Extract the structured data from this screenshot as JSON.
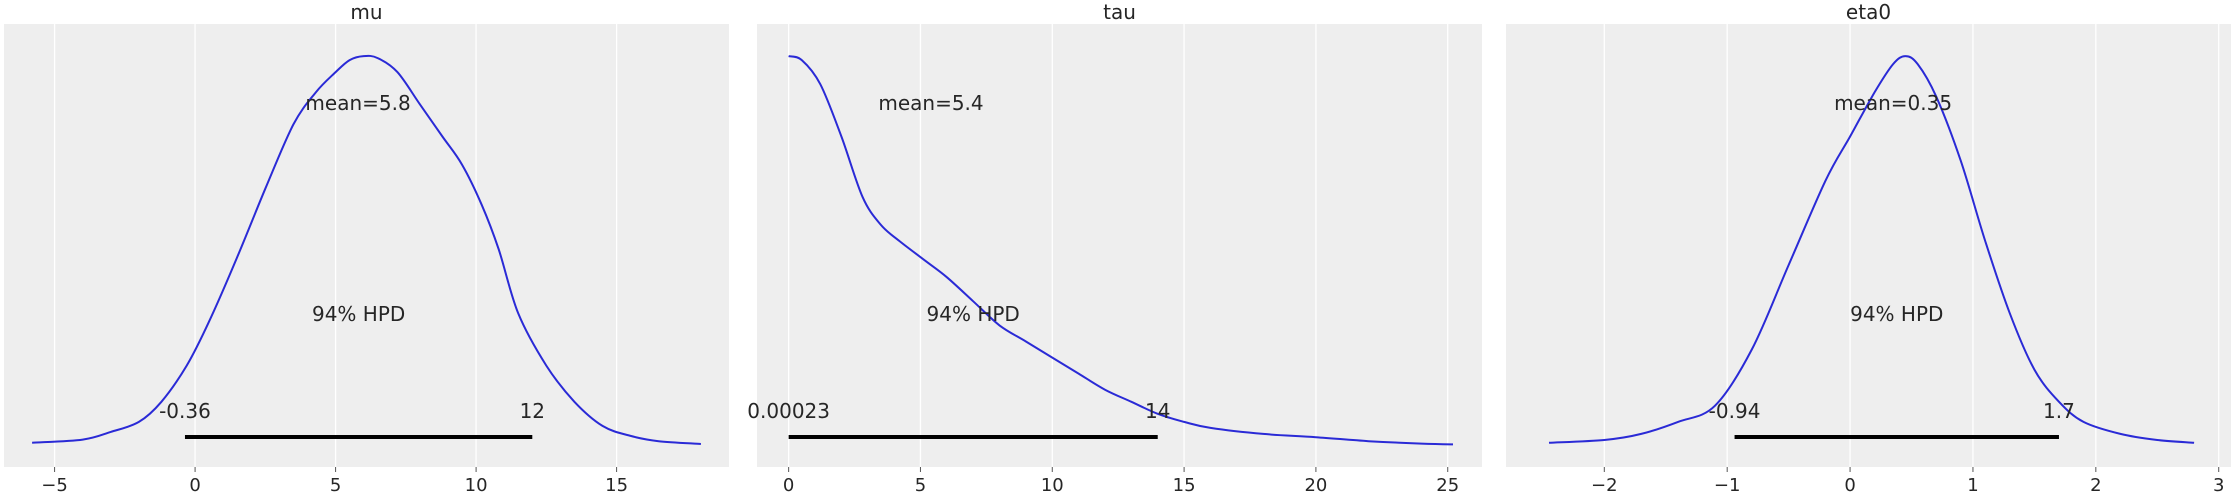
{
  "chart_data": [
    {
      "type": "line",
      "title": "mu",
      "xlim": [
        -6.8,
        19
      ],
      "ylim": [
        0,
        1
      ],
      "xticks": [
        -5,
        0,
        5,
        10,
        15
      ],
      "xtick_labels": [
        "−5",
        "0",
        "5",
        "10",
        "15"
      ],
      "grid": true,
      "x": [
        -5.8,
        -4,
        -3,
        -2,
        -1.2,
        -0.3,
        0.5,
        1.5,
        2.5,
        3.5,
        4.3,
        5,
        5.5,
        6,
        6.5,
        7.2,
        8,
        8.8,
        9.5,
        10.2,
        10.8,
        11.5,
        12.5,
        13.5,
        14.5,
        15.5,
        16.5,
        18
      ],
      "y": [
        0.008,
        0.016,
        0.035,
        0.06,
        0.11,
        0.2,
        0.31,
        0.47,
        0.64,
        0.8,
        0.88,
        0.93,
        0.96,
        0.97,
        0.965,
        0.93,
        0.85,
        0.77,
        0.7,
        0.6,
        0.49,
        0.33,
        0.2,
        0.11,
        0.05,
        0.025,
        0.012,
        0.005
      ],
      "mean_label": "mean=5.8",
      "mean_value": 5.8,
      "hpd_label": "94% HPD",
      "hpd": [
        -0.36,
        12
      ],
      "hpd_low_label": "-0.36",
      "hpd_high_label": "12"
    },
    {
      "type": "line",
      "title": "tau",
      "xlim": [
        -1.2,
        26.3
      ],
      "ylim": [
        0,
        1
      ],
      "xticks": [
        0,
        5,
        10,
        15,
        20,
        25
      ],
      "xtick_labels": [
        "0",
        "5",
        "10",
        "15",
        "20",
        "25"
      ],
      "grid": true,
      "x": [
        0,
        0.5,
        1.2,
        2,
        2.8,
        3.5,
        4.2,
        5.2,
        6,
        7,
        8,
        9,
        10,
        11,
        12,
        13,
        14,
        15,
        16,
        18,
        20,
        22,
        24,
        25.2
      ],
      "y": [
        0.97,
        0.96,
        0.9,
        0.77,
        0.62,
        0.55,
        0.51,
        0.46,
        0.42,
        0.36,
        0.3,
        0.26,
        0.22,
        0.18,
        0.14,
        0.11,
        0.08,
        0.06,
        0.045,
        0.03,
        0.022,
        0.012,
        0.006,
        0.004
      ],
      "mean_label": "mean=5.4",
      "mean_value": 5.4,
      "hpd_label": "94% HPD",
      "hpd": [
        0.00023,
        14
      ],
      "hpd_low_label": "0.00023",
      "hpd_high_label": "14"
    },
    {
      "type": "line",
      "title": "eta0",
      "xlim": [
        -2.8,
        3.1
      ],
      "ylim": [
        0,
        1
      ],
      "xticks": [
        -2,
        -1,
        0,
        1,
        2,
        3
      ],
      "xtick_labels": [
        "−2",
        "−1",
        "0",
        "1",
        "2",
        "3"
      ],
      "grid": true,
      "x": [
        -2.45,
        -2,
        -1.7,
        -1.4,
        -1.1,
        -0.8,
        -0.5,
        -0.2,
        0,
        0.2,
        0.35,
        0.45,
        0.55,
        0.7,
        0.9,
        1.1,
        1.3,
        1.5,
        1.7,
        1.9,
        2.2,
        2.5,
        2.8
      ],
      "y": [
        0.008,
        0.015,
        0.03,
        0.06,
        0.1,
        0.24,
        0.45,
        0.66,
        0.77,
        0.88,
        0.95,
        0.97,
        0.95,
        0.87,
        0.71,
        0.51,
        0.33,
        0.19,
        0.11,
        0.06,
        0.03,
        0.015,
        0.008
      ],
      "mean_label": "mean=0.35",
      "mean_value": 0.35,
      "hpd_label": "94% HPD",
      "hpd": [
        -0.94,
        1.7
      ],
      "hpd_low_label": "-0.94",
      "hpd_high_label": "1.7"
    }
  ]
}
